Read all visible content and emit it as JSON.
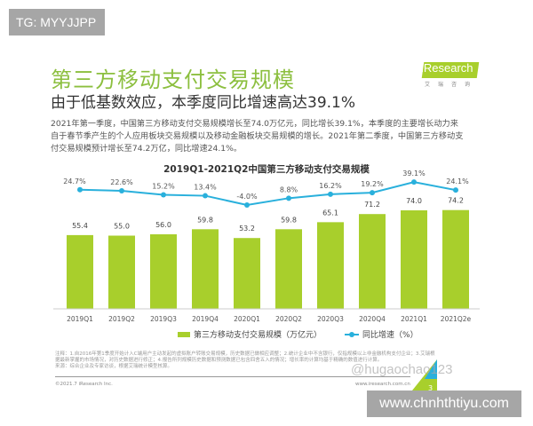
{
  "overlay": {
    "tg_label": "TG: MYYJJPP",
    "site_watermark": "www.chnhthtiyu.com",
    "weibo_watermark": "@hugaochao123"
  },
  "header": {
    "title": "第三方移动支付交易规模",
    "subtitle": "由于低基数效应，本季度同比增速高达39.1%",
    "paragraph": "2021年第一季度，中国第三方移动支付交易规模增长至74.0万亿元，同比增长39.1%，本季度的主要增长动力来自于春节季产生的个人应用板块交易规模以及移动金融板块交易规模的增长。2021年第二季度，中国第三方移动支付交易规模预计增长至74.2万亿，同比增速24.1%。"
  },
  "logo": {
    "text": "iResearch",
    "cn": "艾瑞咨询"
  },
  "chart_data": {
    "type": "bar+line",
    "title": "2019Q1-2021Q2中国第三方移动支付交易规模",
    "categories": [
      "2019Q1",
      "2019Q2",
      "2019Q3",
      "2019Q4",
      "2020Q1",
      "2020Q2",
      "2020Q3",
      "2020Q4",
      "2021Q1",
      "2021Q2e"
    ],
    "series": [
      {
        "name": "第三方移动支付交易规模（万亿元）",
        "type": "bar",
        "color": "#a8cf2c",
        "values": [
          55.4,
          55.0,
          56.0,
          59.8,
          53.2,
          59.8,
          65.1,
          71.2,
          74.0,
          74.2
        ],
        "labels": [
          "55.4",
          "55.0",
          "56.0",
          "59.8",
          "53.2",
          "59.8",
          "65.1",
          "71.2",
          "74.0",
          "74.2"
        ]
      },
      {
        "name": "同比增速（%）",
        "type": "line",
        "color": "#29b0dc",
        "values": [
          24.7,
          22.6,
          15.2,
          13.4,
          -4.0,
          8.8,
          16.2,
          19.2,
          39.1,
          24.1
        ],
        "labels": [
          "24.7%",
          "22.6%",
          "15.2%",
          "13.4%",
          "-4.0%",
          "8.8%",
          "16.2%",
          "19.2%",
          "39.1%",
          "24.1%"
        ]
      }
    ],
    "legend": "bottom",
    "grid": false
  },
  "footer": {
    "notes": "注释：1.自2016年第1季度开始计入C端用户主动发起的虚拟账户转账交易规模，历史数据已做相应调整；2.统计企业中不含银行，仅指规模以上非金融机构支付企业；3.艾瑞根据最新掌握的市场情况，对历史数据进行修正；4.报告所列规模历史数据和预测数据已包含四舍五入的情况；增长率的计算均基于精确的数值进行计算。",
    "source": "来源：综合企业及专家访谈，根据艾瑞统计模型核算。",
    "copyright": "©2021.7 iResearch Inc.",
    "website": "www.iresearch.com.cn",
    "page": "3"
  }
}
